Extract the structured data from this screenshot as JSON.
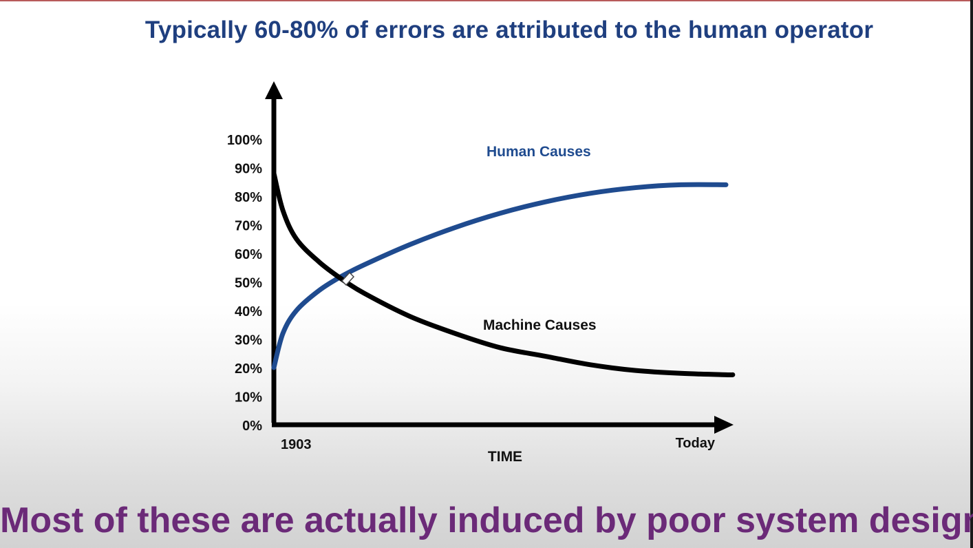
{
  "slide": {
    "title": "Typically 60-80% of errors are attributed to the human operator",
    "footer": "Most of these are actually induced by poor system design"
  },
  "colors": {
    "title": "#1f3f7f",
    "human_line": "#1f4b8f",
    "machine_line": "#000000",
    "footer": "#6b2a78"
  },
  "chart_data": {
    "type": "line",
    "title": "",
    "xlabel": "TIME",
    "ylabel": "",
    "x_tick_labels": [
      "1903",
      "Today"
    ],
    "y_ticks": [
      0,
      10,
      20,
      30,
      40,
      50,
      60,
      70,
      80,
      90,
      100
    ],
    "y_tick_labels": [
      "0%",
      "10%",
      "20%",
      "30%",
      "40%",
      "50%",
      "60%",
      "70%",
      "80%",
      "90%",
      "100%"
    ],
    "ylim": [
      0,
      100
    ],
    "xlim": [
      0,
      1
    ],
    "grid": false,
    "series": [
      {
        "name": "Human Causes",
        "x": [
          0,
          0.02,
          0.05,
          0.1,
          0.15,
          0.2,
          0.3,
          0.4,
          0.5,
          0.6,
          0.7,
          0.8,
          0.9,
          1.0
        ],
        "values": [
          20,
          32,
          40,
          47,
          52,
          56,
          63,
          69,
          74,
          78,
          81,
          83,
          84,
          84
        ]
      },
      {
        "name": "Machine Causes",
        "x": [
          0,
          0.02,
          0.05,
          0.1,
          0.15,
          0.2,
          0.3,
          0.4,
          0.5,
          0.6,
          0.7,
          0.8,
          0.9,
          1.0,
          1.015
        ],
        "values": [
          88,
          75,
          65,
          57,
          51,
          46,
          38,
          32,
          27,
          24,
          21,
          19,
          18,
          17.5,
          17.5
        ]
      }
    ]
  }
}
